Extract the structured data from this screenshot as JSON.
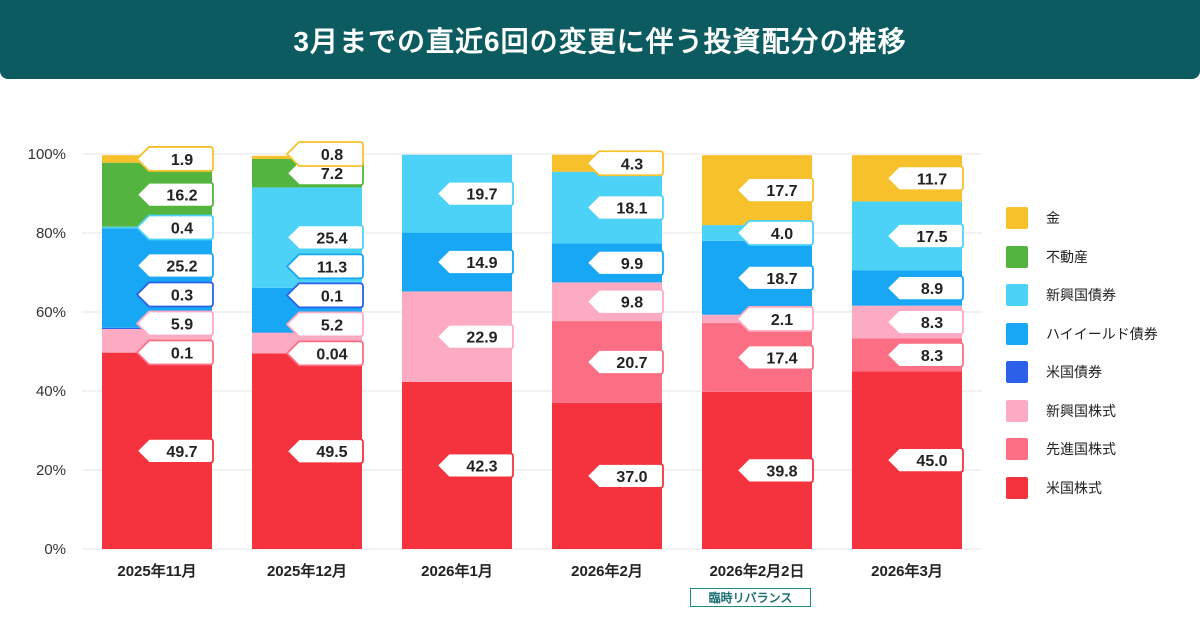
{
  "title": "3月までの直近6回の変更に伴う投資配分の推移",
  "chart_data": {
    "type": "bar",
    "stacked": true,
    "title": "3月までの直近6回の変更に伴う投資配分の推移",
    "categories": [
      "2025年11月",
      "2025年12月",
      "2026年1月",
      "2026年2月",
      "2026年2月2日",
      "2026年3月"
    ],
    "category_note": {
      "index": 4,
      "text": "臨時リバランス"
    },
    "ylim": [
      0,
      100
    ],
    "yticks": [
      0,
      20,
      40,
      60,
      80,
      100
    ],
    "ytick_labels": [
      "0%",
      "20%",
      "40%",
      "60%",
      "80%",
      "100%"
    ],
    "xlabel": "",
    "ylabel": "",
    "grid": true,
    "legend_position": "right",
    "series": [
      {
        "name": "米国株式",
        "color": "#f5333f",
        "values": [
          49.7,
          49.5,
          42.3,
          37.0,
          39.8,
          45.0
        ],
        "labels": [
          "49.7",
          "49.5",
          "42.3",
          "37.0",
          "39.8",
          "45.0"
        ]
      },
      {
        "name": "先進国株式",
        "color": "#fc6e84",
        "values": [
          0.1,
          0.04,
          0,
          20.7,
          17.4,
          8.3
        ],
        "labels": [
          "0.1",
          "0.04",
          "",
          "20.7",
          "17.4",
          "8.3"
        ]
      },
      {
        "name": "新興国株式",
        "color": "#fdaac3",
        "values": [
          5.9,
          5.2,
          22.9,
          9.8,
          2.1,
          8.3
        ],
        "labels": [
          "5.9",
          "5.2",
          "22.9",
          "9.8",
          "2.1",
          "8.3"
        ]
      },
      {
        "name": "米国債券",
        "color": "#2a61e8",
        "values": [
          0.3,
          0.1,
          0,
          0,
          0,
          0
        ],
        "labels": [
          "0.3",
          "0.1",
          "",
          "",
          "",
          ""
        ]
      },
      {
        "name": "ハイイールド債券",
        "color": "#18a7f5",
        "values": [
          25.2,
          11.3,
          14.9,
          9.9,
          18.7,
          8.9
        ],
        "labels": [
          "25.2",
          "11.3",
          "14.9",
          "9.9",
          "18.7",
          "8.9"
        ]
      },
      {
        "name": "新興国債券",
        "color": "#4dd2f7",
        "values": [
          0.4,
          25.4,
          19.7,
          18.1,
          4.0,
          17.5
        ],
        "labels": [
          "0.4",
          "25.4",
          "19.7",
          "18.1",
          "4.0",
          "17.5"
        ]
      },
      {
        "name": "不動産",
        "color": "#54b440",
        "values": [
          16.2,
          7.2,
          0,
          0,
          0,
          0
        ],
        "labels": [
          "16.2",
          "7.2",
          "",
          "",
          "",
          ""
        ]
      },
      {
        "name": "金",
        "color": "#f6c12b",
        "values": [
          1.9,
          0.8,
          0,
          4.3,
          17.7,
          11.7
        ],
        "labels": [
          "1.9",
          "0.8",
          "",
          "4.3",
          "17.7",
          "11.7"
        ]
      }
    ]
  },
  "legend_order": [
    "金",
    "不動産",
    "新興国債券",
    "ハイイールド債券",
    "米国債券",
    "新興国株式",
    "先進国株式",
    "米国株式"
  ]
}
